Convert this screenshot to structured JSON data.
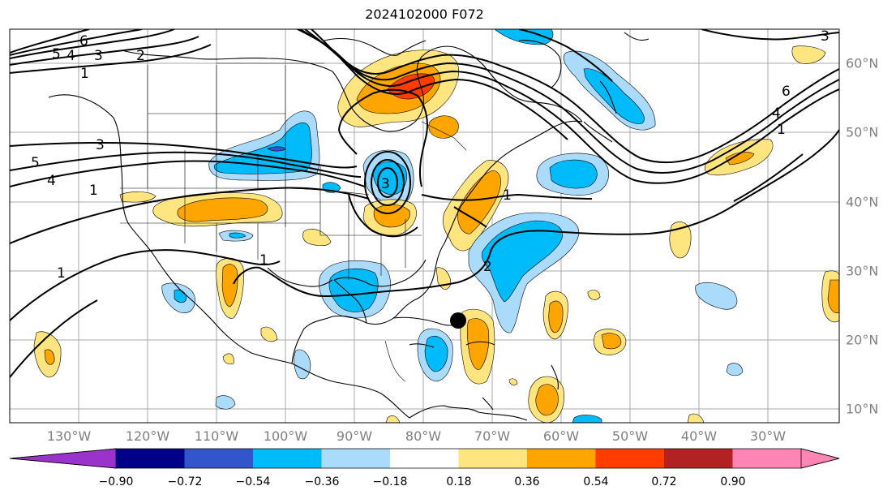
{
  "title": "2024102000 F072",
  "map": {
    "lon_labels": [
      "130°W",
      "120°W",
      "110°W",
      "100°W",
      "90°W",
      "80°W",
      "70°W",
      "60°W",
      "50°W",
      "40°W",
      "30°W"
    ],
    "lat_labels": [
      "60°N",
      "50°N",
      "40°N",
      "30°N",
      "20°N",
      "10°N"
    ],
    "contour_labels": [
      "6",
      "5",
      "4",
      "3",
      "2",
      "1",
      "1",
      "3",
      "4",
      "5",
      "1",
      "1",
      "1",
      "1",
      "2",
      "6",
      "4",
      "3",
      "3"
    ],
    "grid": true
  },
  "colorbar": {
    "tick_labels": [
      "−0.90",
      "−0.72",
      "−0.54",
      "−0.36",
      "−0.18",
      "0.18",
      "0.36",
      "0.54",
      "0.72",
      "0.90"
    ],
    "colors": {
      "below": "#9933cc",
      "bins": [
        "#000088",
        "#3355cc",
        "#00bbf9",
        "#abdbfb",
        "#ffffff",
        "#ffe57f",
        "#ffa500",
        "#ff3d00",
        "#b22222",
        "#ff85b4"
      ],
      "above": "#ff85b4"
    }
  },
  "colors": {
    "pos_light": "#ffe57f",
    "pos_mid": "#ffa500",
    "pos_strong": "#ff3d00",
    "neg_light": "#abdbfb",
    "neg_mid": "#00bbf9",
    "neg_strong": "#3355cc",
    "neg_darkest": "#000088",
    "contour": "#000000",
    "grid": "#aaaaaa"
  }
}
